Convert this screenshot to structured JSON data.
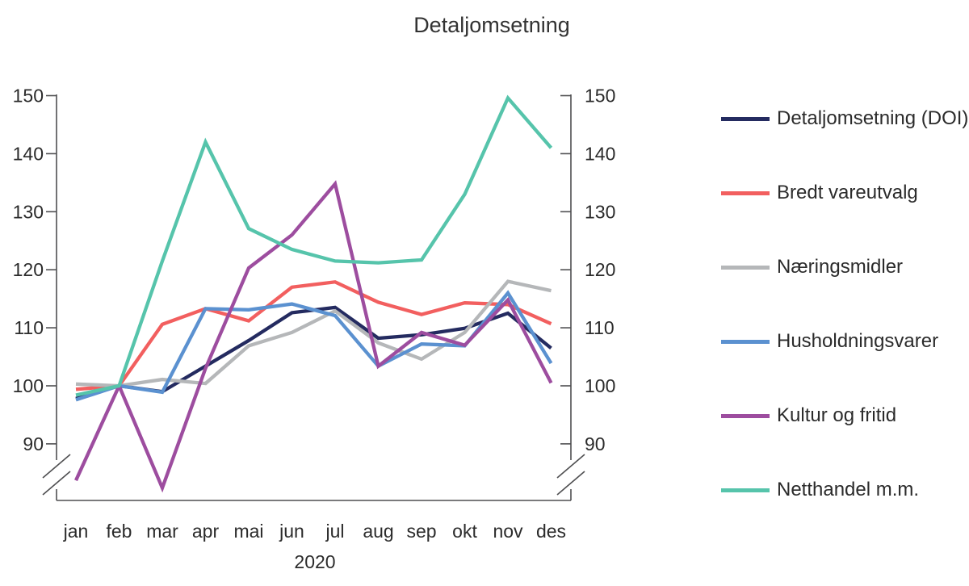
{
  "chart_data": {
    "type": "line",
    "title": "Detaljomsetning",
    "x_label": "2020",
    "categories": [
      "jan",
      "feb",
      "mar",
      "apr",
      "mai",
      "jun",
      "jul",
      "aug",
      "sep",
      "okt",
      "nov",
      "des"
    ],
    "y_ticks": [
      150,
      140,
      130,
      120,
      110,
      100,
      90
    ],
    "ylim": [
      80,
      150
    ],
    "y_axis_break_below": 90,
    "grid": false,
    "legend_position": "right",
    "axis_color": "#4f4f51",
    "series": [
      {
        "name": "Detaljomsetning (DOI)",
        "color": "#242b60",
        "values": [
          97.8,
          100,
          99.0,
          103.4,
          107.8,
          112.6,
          113.5,
          108.2,
          108.8,
          109.9,
          112.5,
          106.5
        ]
      },
      {
        "name": "Bredt vareutvalg",
        "color": "#f25f5f",
        "values": [
          99.4,
          100,
          110.6,
          113.3,
          111.2,
          117.0,
          117.9,
          114.4,
          112.3,
          114.3,
          114.0,
          110.7
        ]
      },
      {
        "name": "Næringsmidler",
        "color": "#b5b7b9",
        "values": [
          100.3,
          100,
          101.1,
          100.4,
          106.9,
          109.2,
          112.9,
          107.4,
          104.6,
          109.2,
          118.0,
          116.4
        ]
      },
      {
        "name": "Husholdningsvarer",
        "color": "#5b91d0",
        "values": [
          97.6,
          100,
          98.9,
          113.3,
          113.1,
          114.1,
          112.1,
          103.4,
          107.2,
          106.9,
          116.0,
          103.9
        ]
      },
      {
        "name": "Kultur og fritid",
        "color": "#9d4d9f",
        "values": [
          83.7,
          100,
          82.4,
          103.0,
          120.3,
          126.0,
          134.8,
          103.4,
          109.2,
          107.0,
          114.8,
          100.5
        ]
      },
      {
        "name": "Netthandel m.m.",
        "color": "#56c4ab",
        "values": [
          98.4,
          100,
          121.5,
          142.0,
          127.1,
          123.5,
          121.5,
          121.2,
          121.7,
          133.0,
          149.6,
          141.0
        ]
      }
    ]
  }
}
